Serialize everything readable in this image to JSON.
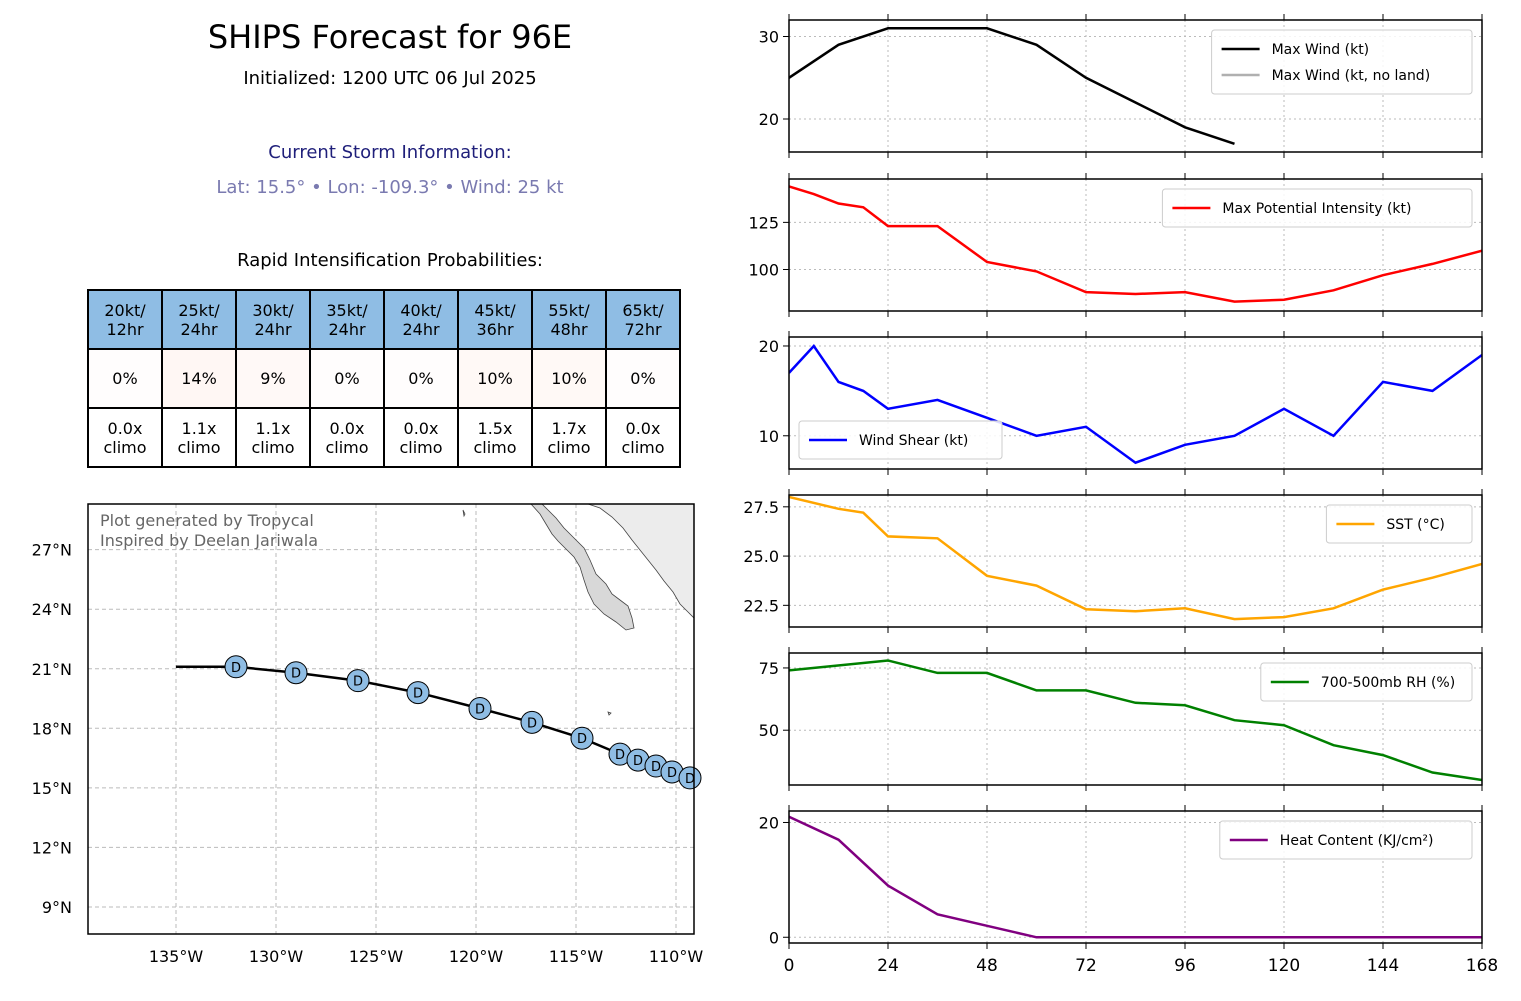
{
  "header": {
    "title": "SHIPS Forecast for 96E",
    "initialized": "Initialized: 1200 UTC 06 Jul 2025",
    "storm_heading": "Current Storm Information:",
    "storm_line": "Lat: 15.5°  •  Lon: -109.3°  •  Wind: 25 kt",
    "ri_title": "Rapid Intensification Probabilities:"
  },
  "ri_table": {
    "headers": [
      [
        "20kt/",
        "12hr"
      ],
      [
        "25kt/",
        "24hr"
      ],
      [
        "30kt/",
        "24hr"
      ],
      [
        "35kt/",
        "24hr"
      ],
      [
        "40kt/",
        "24hr"
      ],
      [
        "45kt/",
        "36hr"
      ],
      [
        "55kt/",
        "48hr"
      ],
      [
        "65kt/",
        "72hr"
      ]
    ],
    "probabilities": [
      "0%",
      "14%",
      "9%",
      "0%",
      "0%",
      "10%",
      "10%",
      "0%"
    ],
    "prob_values": [
      0,
      14,
      9,
      0,
      0,
      10,
      10,
      0
    ],
    "climo": [
      [
        "0.0x",
        "climo"
      ],
      [
        "1.1x",
        "climo"
      ],
      [
        "1.1x",
        "climo"
      ],
      [
        "0.0x",
        "climo"
      ],
      [
        "0.0x",
        "climo"
      ],
      [
        "1.5x",
        "climo"
      ],
      [
        "1.7x",
        "climo"
      ],
      [
        "0.0x",
        "climo"
      ]
    ],
    "header_color": "#8fbde4"
  },
  "map": {
    "credit_lines": [
      "Plot generated by Tropycal",
      "Inspired by Deelan Jariwala"
    ],
    "lat_ticks": [
      {
        "v": 27,
        "label": "27°N"
      },
      {
        "v": 24,
        "label": "24°N"
      },
      {
        "v": 21,
        "label": "21°N"
      },
      {
        "v": 18,
        "label": "18°N"
      },
      {
        "v": 15,
        "label": "15°N"
      },
      {
        "v": 12,
        "label": "12°N"
      },
      {
        "v": 9,
        "label": "9°N"
      }
    ],
    "lon_ticks": [
      {
        "v": -135,
        "label": "135°W"
      },
      {
        "v": -130,
        "label": "130°W"
      },
      {
        "v": -125,
        "label": "125°W"
      },
      {
        "v": -120,
        "label": "120°W"
      },
      {
        "v": -115,
        "label": "115°W"
      },
      {
        "v": -110,
        "label": "110°W"
      }
    ],
    "track": [
      {
        "lon": -109.3,
        "lat": 15.5
      },
      {
        "lon": -110.2,
        "lat": 15.8
      },
      {
        "lon": -111.0,
        "lat": 16.1
      },
      {
        "lon": -111.9,
        "lat": 16.4
      },
      {
        "lon": -112.8,
        "lat": 16.7
      },
      {
        "lon": -114.7,
        "lat": 17.5
      },
      {
        "lon": -117.2,
        "lat": 18.3
      },
      {
        "lon": -119.8,
        "lat": 19.0
      },
      {
        "lon": -122.9,
        "lat": 19.8
      },
      {
        "lon": -125.9,
        "lat": 20.4
      },
      {
        "lon": -129.0,
        "lat": 20.8
      },
      {
        "lon": -132.0,
        "lat": 21.1
      },
      {
        "lon": -135.0,
        "lat": 21.1
      }
    ],
    "marker_label": "D",
    "marker_color": "#8fbde4",
    "land_color": "#ececec"
  },
  "chart_data": [
    {
      "type": "line",
      "name": "wind",
      "series": [
        {
          "name": "Max Wind (kt)",
          "color": "#000000",
          "x": [
            0,
            12,
            24,
            36,
            48,
            60,
            72,
            84,
            96,
            108
          ],
          "y": [
            25,
            29,
            31,
            31,
            31,
            29,
            25,
            22,
            19,
            17
          ]
        }
      ],
      "legend": [
        "Max Wind (kt)",
        "Max Wind (kt, no land)"
      ],
      "legend_colors": [
        "#000000",
        "#b0b0b0"
      ],
      "legend_pos": "top-right",
      "ylim": [
        16,
        32
      ],
      "yticks": [
        20,
        30
      ],
      "xlim": [
        0,
        168
      ],
      "grid": true
    },
    {
      "type": "line",
      "name": "mpi",
      "series": [
        {
          "name": "Max Potential Intensity (kt)",
          "color": "#ff0000",
          "x": [
            0,
            6,
            12,
            18,
            24,
            36,
            48,
            60,
            72,
            84,
            96,
            108,
            120,
            132,
            144,
            156,
            168
          ],
          "y": [
            144,
            140,
            135,
            133,
            123,
            123,
            104,
            99,
            88,
            87,
            88,
            83,
            84,
            89,
            97,
            103,
            110
          ]
        }
      ],
      "legend": [
        "Max Potential Intensity (kt)"
      ],
      "legend_colors": [
        "#ff0000"
      ],
      "legend_pos": "top-right",
      "ylim": [
        78,
        148
      ],
      "yticks": [
        100,
        125
      ],
      "xlim": [
        0,
        168
      ],
      "grid": true
    },
    {
      "type": "line",
      "name": "shear",
      "series": [
        {
          "name": "Wind Shear (kt)",
          "color": "#0000ff",
          "x": [
            0,
            6,
            12,
            18,
            24,
            36,
            48,
            60,
            72,
            84,
            96,
            108,
            120,
            132,
            144,
            156,
            168
          ],
          "y": [
            17,
            20,
            16,
            15,
            13,
            14,
            12,
            10,
            11,
            7,
            9,
            10,
            13,
            10,
            16,
            15,
            19
          ]
        }
      ],
      "legend": [
        "Wind Shear (kt)"
      ],
      "legend_colors": [
        "#0000ff"
      ],
      "legend_pos": "bottom-left",
      "ylim": [
        6.3,
        21
      ],
      "yticks": [
        10,
        20
      ],
      "xlim": [
        0,
        168
      ],
      "grid": true
    },
    {
      "type": "line",
      "name": "sst",
      "series": [
        {
          "name": "SST (°C)",
          "color": "#ffa500",
          "x": [
            0,
            12,
            18,
            24,
            36,
            48,
            60,
            72,
            84,
            96,
            108,
            120,
            132,
            144,
            156,
            168
          ],
          "y": [
            28.0,
            27.4,
            27.2,
            26.0,
            25.9,
            24.0,
            23.5,
            22.3,
            22.2,
            22.35,
            21.8,
            21.9,
            22.35,
            23.3,
            23.9,
            24.6
          ]
        }
      ],
      "legend": [
        "SST (°C)"
      ],
      "legend_colors": [
        "#ffa500"
      ],
      "legend_pos": "top-right",
      "ylim": [
        21.4,
        28.1
      ],
      "yticks": [
        22.5,
        25.0,
        27.5
      ],
      "xlim": [
        0,
        168
      ],
      "grid": true
    },
    {
      "type": "line",
      "name": "rh",
      "series": [
        {
          "name": "700-500mb RH (%)",
          "color": "#008000",
          "x": [
            0,
            24,
            36,
            48,
            60,
            72,
            84,
            96,
            108,
            120,
            132,
            144,
            156,
            168
          ],
          "y": [
            74,
            78,
            73,
            73,
            66,
            66,
            61,
            60,
            54,
            52,
            44,
            40,
            33,
            30
          ]
        }
      ],
      "legend": [
        "700-500mb RH (%)"
      ],
      "legend_colors": [
        "#008000"
      ],
      "legend_pos": "top-right",
      "ylim": [
        28,
        81
      ],
      "yticks": [
        50,
        75
      ],
      "xlim": [
        0,
        168
      ],
      "grid": true
    },
    {
      "type": "line",
      "name": "ohc",
      "series": [
        {
          "name": "Heat Content (KJ/cm²)",
          "color": "#800080",
          "x": [
            0,
            12,
            24,
            36,
            48,
            60,
            72,
            84,
            96,
            108,
            120,
            132,
            144,
            156,
            168
          ],
          "y": [
            21,
            17,
            9,
            4,
            2,
            0,
            0,
            0,
            0,
            0,
            0,
            0,
            0,
            0,
            0
          ]
        }
      ],
      "legend": [
        "Heat Content (KJ/cm²)"
      ],
      "legend_colors": [
        "#800080"
      ],
      "legend_pos": "top-right",
      "ylim": [
        -1,
        22
      ],
      "yticks": [
        0,
        20
      ],
      "xlim": [
        0,
        168
      ],
      "xticks": [
        0,
        24,
        48,
        72,
        96,
        120,
        144,
        168
      ],
      "grid": true
    }
  ]
}
